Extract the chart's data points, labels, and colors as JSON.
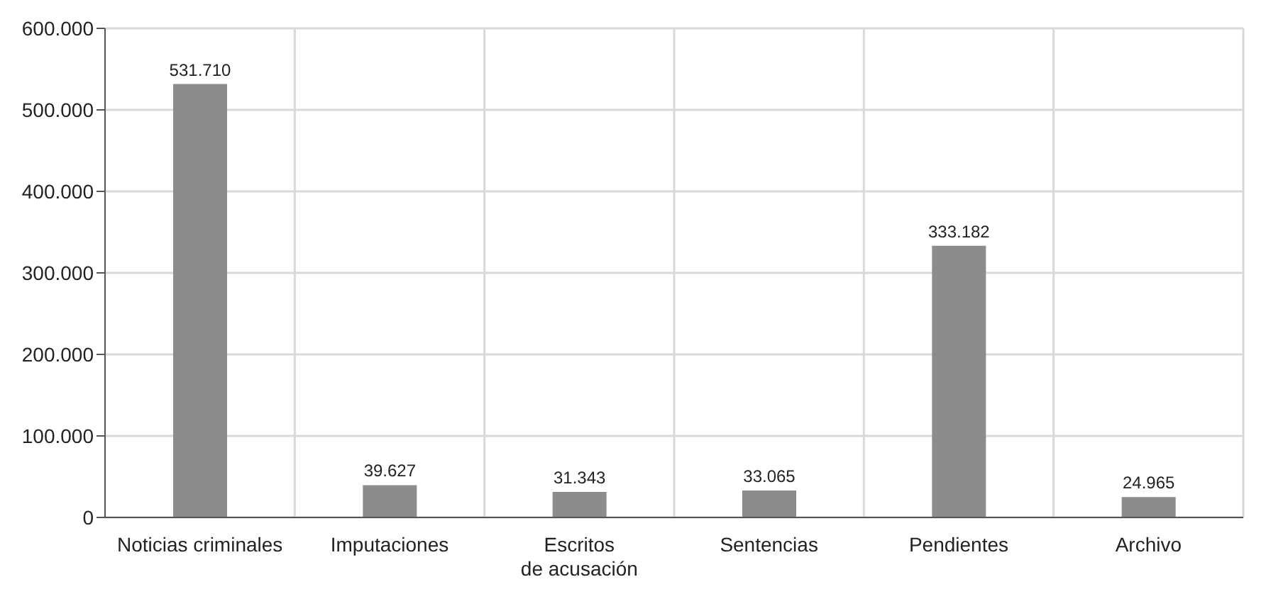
{
  "chart_data": {
    "type": "bar",
    "categories": [
      "Noticias criminales",
      "Imputaciones",
      "Escritos\nde acusación",
      "Sentencias",
      "Pendientes",
      "Archivo"
    ],
    "values": [
      531710,
      39627,
      31343,
      33065,
      333182,
      24965
    ],
    "value_labels": [
      "531.710",
      "39.627",
      "31.343",
      "33.065",
      "333.182",
      "24.965"
    ],
    "color": "#8c8c8c",
    "ylim": [
      0,
      600000
    ],
    "yticks": [
      {
        "value": 0,
        "label": "0"
      },
      {
        "value": 100000,
        "label": "100.000"
      },
      {
        "value": 200000,
        "label": "200.000"
      },
      {
        "value": 300000,
        "label": "300.000"
      },
      {
        "value": 400000,
        "label": "400.000"
      },
      {
        "value": 500000,
        "label": "500.000"
      },
      {
        "value": 600000,
        "label": "600.000"
      }
    ],
    "grid": true,
    "legend": false
  }
}
